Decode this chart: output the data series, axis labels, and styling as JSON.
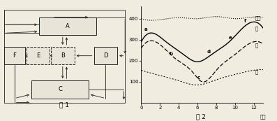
{
  "fig_background": "#f0ece0",
  "border_color": "#222222",
  "box_fc": "#e8e4d8",
  "graph": {
    "xlim": [
      0,
      13
    ],
    "ylim": [
      0,
      460
    ],
    "xticks": [
      0,
      2,
      4,
      6,
      8,
      10,
      12
    ],
    "yticks": [
      100,
      200,
      300,
      400
    ],
    "fig2_label": "图 2",
    "fig1_label": "图 1",
    "plant_label": "植物",
    "curve_bing_label": "丙",
    "curve_yi_label": "乙",
    "curve_jia_label": "甲",
    "shijian_label": "时间",
    "plant_ctrl": [
      0,
      2,
      4,
      6,
      8,
      10,
      12,
      13
    ],
    "plant_vals": [
      400,
      395,
      405,
      400,
      410,
      400,
      408,
      405
    ],
    "bing_ctrl": [
      0,
      0.8,
      2.5,
      4.5,
      6.0,
      7.5,
      9.5,
      11.2,
      13
    ],
    "bing_vals": [
      290,
      330,
      295,
      230,
      195,
      230,
      295,
      370,
      355
    ],
    "yi_ctrl": [
      0,
      1.0,
      3.5,
      5.5,
      6.5,
      8.0,
      10.0,
      12.0,
      13
    ],
    "yi_vals": [
      260,
      295,
      215,
      145,
      100,
      155,
      230,
      290,
      280
    ],
    "jia_ctrl": [
      0,
      2,
      4,
      6,
      8,
      10,
      12,
      13
    ],
    "jia_vals": [
      155,
      130,
      105,
      85,
      110,
      135,
      155,
      158
    ],
    "points": {
      "a": [
        0.8,
        330
      ],
      "b": [
        3.5,
        215
      ],
      "c": [
        6.5,
        100
      ],
      "d": [
        7.5,
        225
      ],
      "e": [
        9.8,
        290
      ],
      "f": [
        11.2,
        370
      ]
    }
  }
}
